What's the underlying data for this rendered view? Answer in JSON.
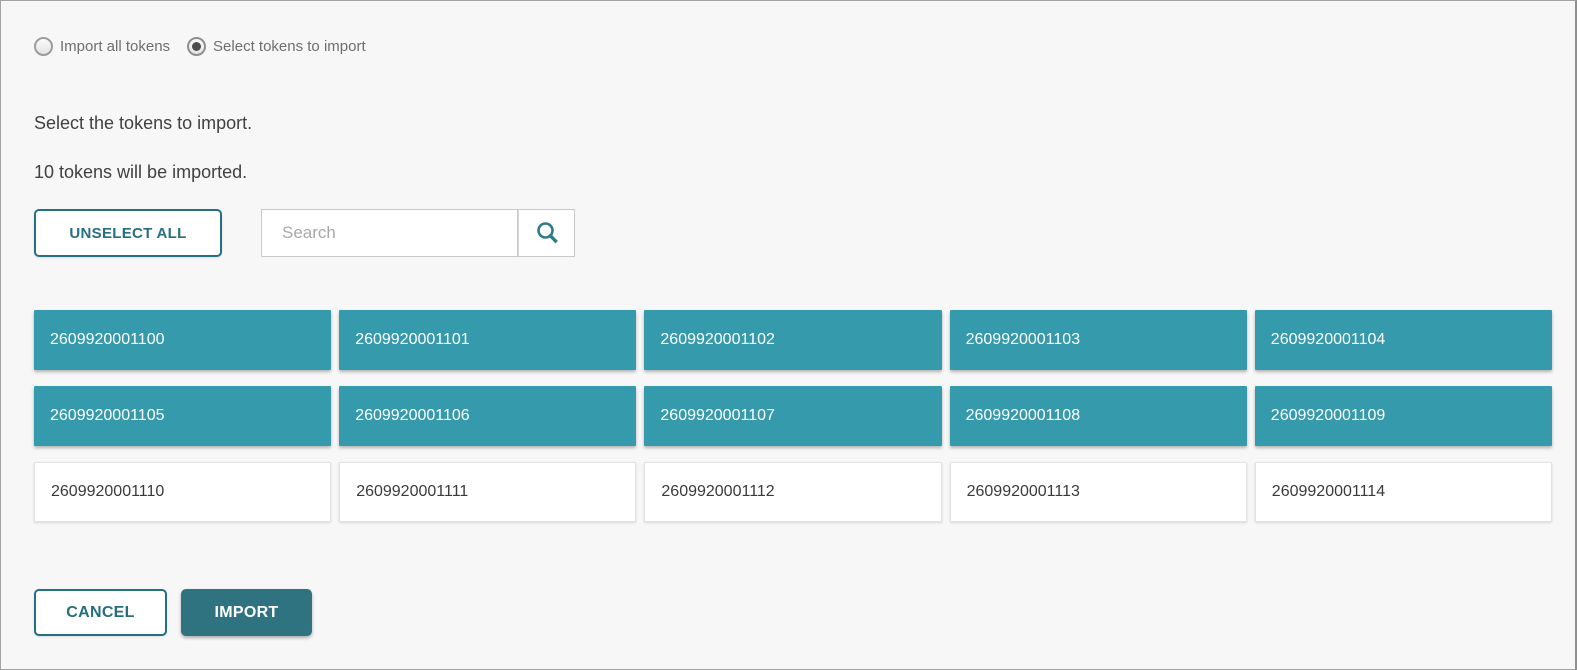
{
  "radio_group": {
    "options": [
      {
        "label": "Import all tokens",
        "selected": false
      },
      {
        "label": "Select tokens to import",
        "selected": true
      }
    ]
  },
  "instructions": {
    "select_line": "Select the tokens to import.",
    "count_line": "10 tokens will be imported."
  },
  "toolbar": {
    "unselect_all_label": "UNSELECT ALL",
    "search_placeholder": "Search",
    "search_value": "",
    "search_icon": "magnifier"
  },
  "tokens": {
    "items": [
      {
        "id": "2609920001100",
        "selected": true
      },
      {
        "id": "2609920001101",
        "selected": true
      },
      {
        "id": "2609920001102",
        "selected": true
      },
      {
        "id": "2609920001103",
        "selected": true
      },
      {
        "id": "2609920001104",
        "selected": true
      },
      {
        "id": "2609920001105",
        "selected": true
      },
      {
        "id": "2609920001106",
        "selected": true
      },
      {
        "id": "2609920001107",
        "selected": true
      },
      {
        "id": "2609920001108",
        "selected": true
      },
      {
        "id": "2609920001109",
        "selected": true
      },
      {
        "id": "2609920001110",
        "selected": false
      },
      {
        "id": "2609920001111",
        "selected": false
      },
      {
        "id": "2609920001112",
        "selected": false
      },
      {
        "id": "2609920001113",
        "selected": false
      },
      {
        "id": "2609920001114",
        "selected": false
      }
    ]
  },
  "footer": {
    "cancel_label": "CANCEL",
    "import_label": "IMPORT"
  },
  "colors": {
    "tile_selected": "#359bac",
    "import_button": "#2f7380",
    "outline_teal": "#266f80",
    "background": "#f7f7f7"
  }
}
